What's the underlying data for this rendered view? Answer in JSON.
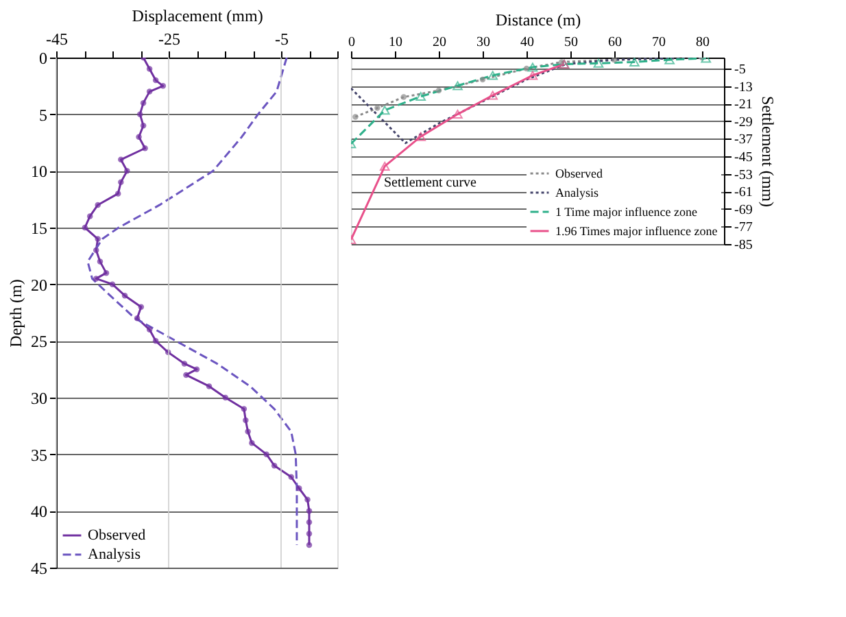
{
  "chart_data": [
    {
      "type": "line",
      "xlabel": "Displacement (mm)",
      "ylabel": "Depth (m)",
      "xlim": [
        -45,
        5
      ],
      "ylim": [
        45,
        0
      ],
      "xticks": [
        -45,
        {
          "value": -40,
          "label": null
        },
        {
          "value": -35,
          "label": null
        },
        {
          "value": -30,
          "label": null
        },
        -25,
        {
          "value": -20,
          "label": null
        },
        {
          "value": -15,
          "label": null
        },
        {
          "value": -10,
          "label": null
        },
        -5,
        {
          "value": 0,
          "label": null
        },
        {
          "value": 5,
          "label": null
        }
      ],
      "yticks": [
        0,
        5,
        10,
        15,
        20,
        25,
        30,
        35,
        40,
        45
      ],
      "grid": true,
      "legend": "bottom left",
      "series": [
        {
          "name": "Observed",
          "color": "#7030a0",
          "marker": "circle",
          "line_style": "solid",
          "x": [
            -29.5,
            -28.4,
            -27.3,
            -26,
            -28.4,
            -29.5,
            -30.1,
            -29.5,
            -30.3,
            -29.2,
            -33.5,
            -32.4,
            -33.5,
            -34,
            -37.6,
            -39,
            -39.9,
            -37.6,
            -37.9,
            -37.2,
            -36.1,
            -37.9,
            -35,
            -32.8,
            -29.9,
            -30.6,
            -28.4,
            -27.3,
            -25.1,
            -22.2,
            -20,
            -21.9,
            -17.8,
            -14.9,
            -11.6,
            -11.3,
            -10.9,
            -10.2,
            -7.6,
            -6.2,
            -3.2,
            -1.8,
            -0.3,
            0,
            0,
            0,
            0
          ],
          "values": [
            0,
            1,
            2,
            2.5,
            3,
            4,
            5,
            6,
            7,
            8,
            9,
            10,
            11,
            12,
            13,
            14,
            15,
            16,
            17,
            18,
            19,
            19.5,
            20,
            21,
            22,
            23,
            24,
            25,
            26,
            27,
            27.5,
            28,
            29,
            30,
            31,
            32,
            33,
            34,
            35,
            36,
            37,
            38,
            39,
            40,
            41,
            42,
            43
          ]
        },
        {
          "name": "Analysis",
          "color": "#6b55c0",
          "marker": "none",
          "line_style": "dashed",
          "x": [
            -4,
            -5.8,
            -9.1,
            -12,
            -17.1,
            -26.6,
            -33.9,
            -36.8,
            -39.4,
            -38.6,
            -35.4,
            -31,
            -23.7,
            -16.4,
            -10.5,
            -6.2,
            -3.2,
            -2.4,
            -2.2,
            -2.2
          ],
          "values": [
            0,
            3,
            5,
            7,
            10,
            13,
            15,
            16,
            18,
            19.5,
            21,
            23,
            25,
            27,
            29,
            31,
            33,
            35,
            38,
            43
          ]
        }
      ]
    },
    {
      "type": "line",
      "xlabel": "Distance (m)",
      "ylabel": "Settlement (mm)",
      "xlim": [
        0,
        85
      ],
      "ylim": [
        -85,
        0
      ],
      "xticks": [
        0,
        10,
        20,
        30,
        40,
        50,
        60,
        70,
        80
      ],
      "yticks": [
        -5,
        -13,
        -21,
        -29,
        -37,
        -45,
        -53,
        -61,
        -69,
        -77,
        -85
      ],
      "grid": "y",
      "legend": "bottom right",
      "annotations": [
        "Settlement curve"
      ],
      "series": [
        {
          "name": "Observed",
          "color": "#8a8a8a",
          "marker": "circle",
          "line_style": "dotted",
          "x": [
            1,
            6,
            12,
            20,
            30,
            40,
            48,
            60,
            80
          ],
          "values": [
            -27,
            -23,
            -18,
            -15,
            -10,
            -5,
            -2,
            -1,
            0
          ]
        },
        {
          "name": "Analysis",
          "color": "#44446a",
          "marker": "none",
          "line_style": "dotted",
          "x": [
            0,
            12.4,
            20,
            30,
            40,
            49,
            60,
            80
          ],
          "values": [
            -14,
            -39,
            -30,
            -20,
            -10,
            -3,
            -1,
            0
          ]
        },
        {
          "name": "1 Time major influence zone",
          "color": "#2eb08a",
          "marker": "triangle",
          "line_style": "dashed",
          "x": [
            0,
            7.7,
            15.9,
            24.3,
            32.3,
            41.4,
            48.6,
            56.4,
            64.6,
            72.6,
            80.9
          ],
          "values": [
            -39.3,
            -24,
            -17.7,
            -12.8,
            -8.1,
            -4.4,
            -3,
            -2.6,
            -2,
            -1,
            -0.3
          ]
        },
        {
          "name": "1.96 Times major influence zone",
          "color": "#e8508a",
          "marker": "triangle",
          "line_style": "solid",
          "x": [
            0,
            7.7,
            15.9,
            24.3,
            32.3,
            41.4,
            48.6
          ],
          "values": [
            -83,
            -49.5,
            -36,
            -25.8,
            -17.2,
            -8.1,
            -3
          ]
        }
      ]
    }
  ]
}
